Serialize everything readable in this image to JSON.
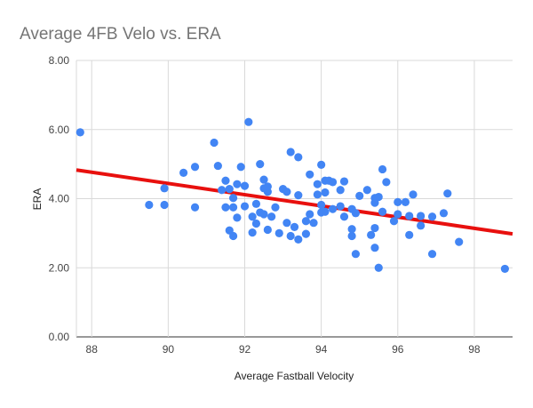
{
  "chart_data": {
    "type": "scatter",
    "title": "Average 4FB Velo vs. ERA",
    "xlabel": "Average Fastball Velocity",
    "ylabel": "ERA",
    "xlim": [
      87.6,
      99
    ],
    "ylim": [
      0,
      8
    ],
    "x_ticks": [
      88,
      90,
      92,
      94,
      96,
      98
    ],
    "y_ticks": [
      0,
      2,
      4,
      6,
      8
    ],
    "x_tick_labels": [
      "88",
      "90",
      "92",
      "94",
      "96",
      "98"
    ],
    "y_tick_labels": [
      "0.00",
      "2.00",
      "4.00",
      "6.00",
      "8.00"
    ],
    "grid": true,
    "series": [
      {
        "name": "ERA",
        "color": "#4285f4",
        "points": [
          [
            87.7,
            5.92
          ],
          [
            89.5,
            3.82
          ],
          [
            89.9,
            4.3
          ],
          [
            89.9,
            3.82
          ],
          [
            90.4,
            4.75
          ],
          [
            90.7,
            4.92
          ],
          [
            90.7,
            3.75
          ],
          [
            91.2,
            5.62
          ],
          [
            91.3,
            4.95
          ],
          [
            91.4,
            4.25
          ],
          [
            91.5,
            4.52
          ],
          [
            91.6,
            4.28
          ],
          [
            91.7,
            4.02
          ],
          [
            91.8,
            4.42
          ],
          [
            91.9,
            4.92
          ],
          [
            92.0,
            4.37
          ],
          [
            92.1,
            6.22
          ],
          [
            91.5,
            3.75
          ],
          [
            91.7,
            3.75
          ],
          [
            91.8,
            3.45
          ],
          [
            91.6,
            3.08
          ],
          [
            91.7,
            2.92
          ],
          [
            92.0,
            3.78
          ],
          [
            92.2,
            3.48
          ],
          [
            92.3,
            3.85
          ],
          [
            92.2,
            3.02
          ],
          [
            92.4,
            5.0
          ],
          [
            92.5,
            4.55
          ],
          [
            92.5,
            4.3
          ],
          [
            92.6,
            4.2
          ],
          [
            92.6,
            4.35
          ],
          [
            92.4,
            3.6
          ],
          [
            92.5,
            3.55
          ],
          [
            92.7,
            3.48
          ],
          [
            92.8,
            3.75
          ],
          [
            92.3,
            3.28
          ],
          [
            92.6,
            3.1
          ],
          [
            92.9,
            3.0
          ],
          [
            93.0,
            4.28
          ],
          [
            93.1,
            4.2
          ],
          [
            93.2,
            5.35
          ],
          [
            93.4,
            5.2
          ],
          [
            93.4,
            4.1
          ],
          [
            93.1,
            3.3
          ],
          [
            93.3,
            3.18
          ],
          [
            93.2,
            2.92
          ],
          [
            93.4,
            2.82
          ],
          [
            93.6,
            3.35
          ],
          [
            93.7,
            3.55
          ],
          [
            93.6,
            2.98
          ],
          [
            93.8,
            3.3
          ],
          [
            93.7,
            4.7
          ],
          [
            93.9,
            4.42
          ],
          [
            94.0,
            4.98
          ],
          [
            94.1,
            4.52
          ],
          [
            94.2,
            4.52
          ],
          [
            94.3,
            4.48
          ],
          [
            93.9,
            4.12
          ],
          [
            94.1,
            4.18
          ],
          [
            94.0,
            3.82
          ],
          [
            94.0,
            3.6
          ],
          [
            94.1,
            3.62
          ],
          [
            94.3,
            3.7
          ],
          [
            94.5,
            4.25
          ],
          [
            94.6,
            4.5
          ],
          [
            94.5,
            3.78
          ],
          [
            94.6,
            3.48
          ],
          [
            94.8,
            3.7
          ],
          [
            94.9,
            3.58
          ],
          [
            94.8,
            3.12
          ],
          [
            94.8,
            2.92
          ],
          [
            94.9,
            2.4
          ],
          [
            95.0,
            4.08
          ],
          [
            95.2,
            4.25
          ],
          [
            95.4,
            3.88
          ],
          [
            95.4,
            4.02
          ],
          [
            95.5,
            4.05
          ],
          [
            95.6,
            4.85
          ],
          [
            95.7,
            4.48
          ],
          [
            95.6,
            3.62
          ],
          [
            95.3,
            2.95
          ],
          [
            95.4,
            2.58
          ],
          [
            95.5,
            2.0
          ],
          [
            95.4,
            3.15
          ],
          [
            95.9,
            3.35
          ],
          [
            96.0,
            3.55
          ],
          [
            96.0,
            3.9
          ],
          [
            96.2,
            3.9
          ],
          [
            96.4,
            4.12
          ],
          [
            96.3,
            3.5
          ],
          [
            96.3,
            2.95
          ],
          [
            96.6,
            3.5
          ],
          [
            96.6,
            3.22
          ],
          [
            96.9,
            3.48
          ],
          [
            96.9,
            2.4
          ],
          [
            97.2,
            3.58
          ],
          [
            97.3,
            4.15
          ],
          [
            97.6,
            2.75
          ],
          [
            98.8,
            1.97
          ]
        ]
      }
    ],
    "trendline": {
      "color": "#e8100e",
      "x_start": 87.6,
      "y_start": 4.83,
      "x_end": 99.0,
      "y_end": 2.98
    },
    "legend": "none"
  }
}
